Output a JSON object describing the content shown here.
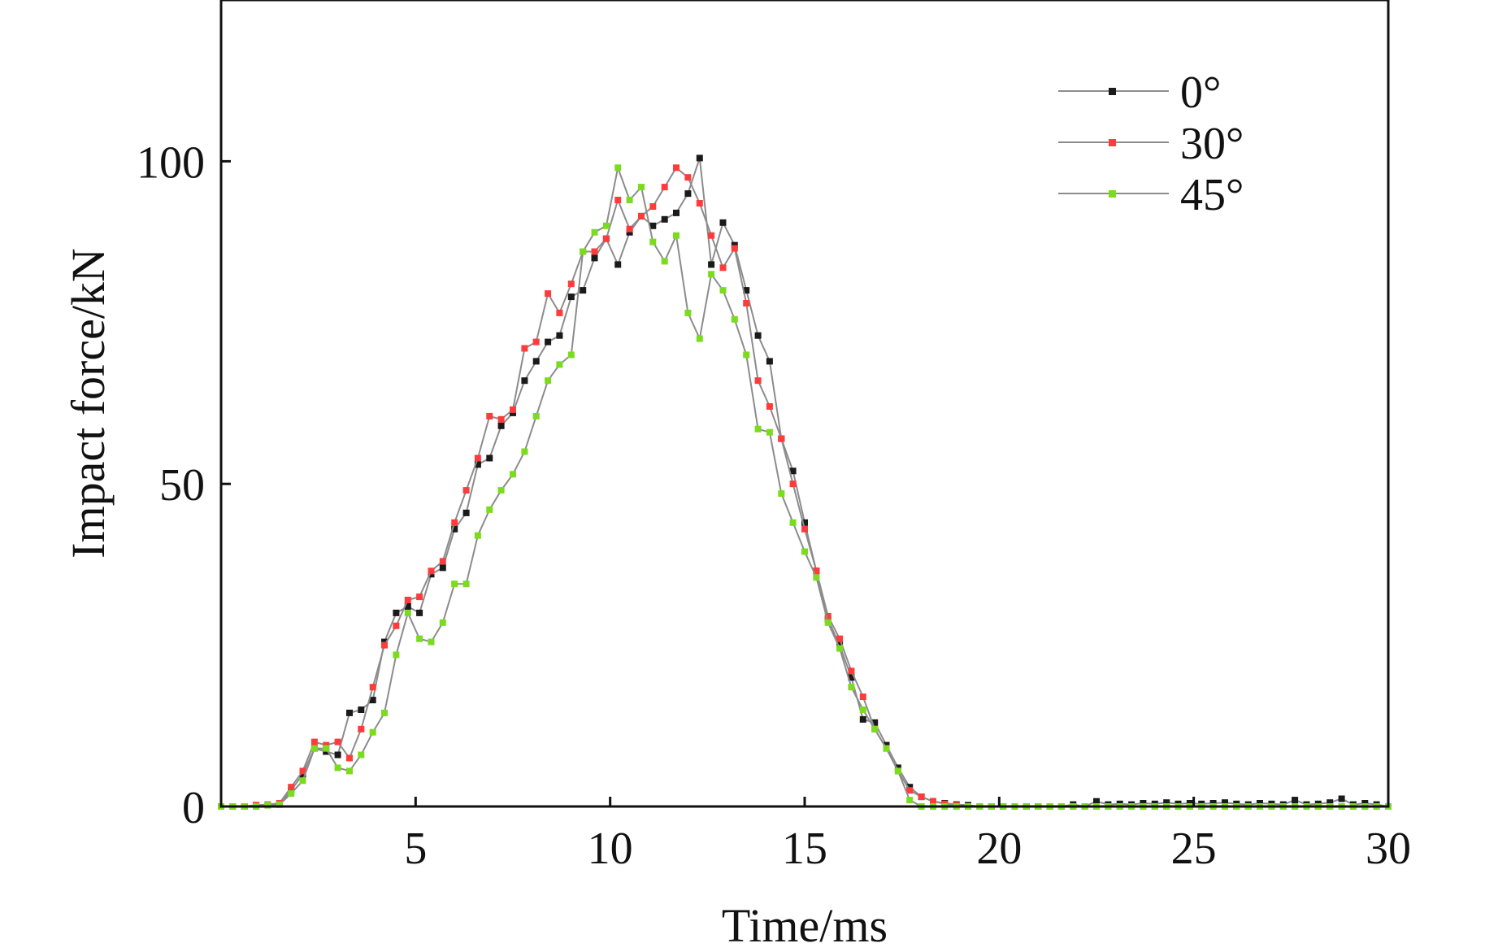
{
  "chart_data": {
    "type": "line",
    "title": "",
    "xlabel": "Time/ms",
    "ylabel": "Impact force/kN",
    "xlim": [
      0,
      30
    ],
    "ylim": [
      0,
      125
    ],
    "xticks": [
      5,
      10,
      15,
      20,
      25,
      30
    ],
    "yticks": [
      0,
      50,
      100
    ],
    "grid": false,
    "legend_position": "top-right",
    "x": [
      0.0,
      0.3,
      0.6,
      0.9,
      1.2,
      1.5,
      1.8,
      2.1,
      2.4,
      2.7,
      3.0,
      3.3,
      3.6,
      3.9,
      4.2,
      4.5,
      4.8,
      5.1,
      5.4,
      5.7,
      6.0,
      6.3,
      6.6,
      6.9,
      7.2,
      7.5,
      7.8,
      8.1,
      8.4,
      8.7,
      9.0,
      9.3,
      9.6,
      9.9,
      10.2,
      10.5,
      10.8,
      11.1,
      11.4,
      11.7,
      12.0,
      12.3,
      12.6,
      12.9,
      13.2,
      13.5,
      13.8,
      14.1,
      14.4,
      14.7,
      15.0,
      15.3,
      15.6,
      15.9,
      16.2,
      16.5,
      16.8,
      17.1,
      17.4,
      17.7,
      18.0,
      18.3,
      18.6,
      18.9,
      19.2,
      19.5,
      19.8,
      20.1,
      20.4,
      20.7,
      21.0,
      21.3,
      21.6,
      21.9,
      22.2,
      22.5,
      22.8,
      23.1,
      23.4,
      23.7,
      24.0,
      24.3,
      24.6,
      24.9,
      25.2,
      25.5,
      25.8,
      26.1,
      26.4,
      26.7,
      27.0,
      27.3,
      27.6,
      27.9,
      28.2,
      28.5,
      28.8,
      29.1,
      29.4,
      29.7,
      30.0
    ],
    "series": [
      {
        "name": "0°",
        "color": "#1a1a1a",
        "values": [
          0,
          0,
          0,
          0.2,
          0.2,
          0.3,
          2.5,
          5.0,
          9.0,
          8.5,
          8.0,
          14.5,
          15.0,
          16.5,
          25.5,
          30.0,
          31.0,
          30.0,
          36.0,
          37.0,
          43.0,
          45.5,
          53.0,
          54.0,
          59.0,
          61.0,
          66.0,
          69.0,
          72.0,
          73.0,
          79.0,
          80.0,
          85.0,
          88.0,
          84.0,
          89.0,
          91.5,
          90.0,
          91.0,
          92.0,
          95.0,
          100.5,
          84.0,
          90.5,
          87.0,
          80.0,
          73.0,
          69.0,
          57.0,
          52.0,
          44.0,
          36.5,
          29.0,
          25.0,
          20.0,
          13.5,
          13.0,
          9.5,
          6.0,
          3.0,
          1.5,
          0.8,
          0.5,
          0.3,
          0.2,
          0,
          0,
          0,
          0,
          0,
          0,
          0,
          0,
          0.3,
          0,
          0.8,
          0.3,
          0.4,
          0.3,
          0.5,
          0.4,
          0.6,
          0.4,
          0.5,
          0.4,
          0.5,
          0.6,
          0.4,
          0.3,
          0.5,
          0.4,
          0.3,
          1.0,
          0.3,
          0.4,
          0.6,
          1.2,
          0.3,
          0.5,
          0.3,
          0
        ]
      },
      {
        "name": "30°",
        "color": "#ff3b3b",
        "values": [
          0,
          0,
          0,
          0.2,
          0.3,
          0.5,
          3.0,
          5.5,
          10.0,
          9.5,
          10.0,
          7.5,
          12.0,
          18.5,
          25.0,
          28.0,
          32.0,
          32.5,
          36.5,
          38.0,
          44.0,
          49.0,
          54.0,
          60.5,
          60.0,
          61.5,
          71.0,
          72.0,
          79.5,
          76.5,
          81.0,
          86.0,
          86.0,
          88.0,
          94.0,
          89.5,
          91.5,
          93.0,
          96.0,
          99.0,
          97.5,
          93.5,
          88.5,
          83.5,
          86.5,
          78.0,
          66.0,
          62.0,
          57.0,
          50.0,
          43.0,
          36.5,
          29.5,
          26.0,
          21.0,
          17.0,
          12.0,
          9.0,
          5.5,
          2.5,
          1.5,
          0.8,
          0.4,
          0.2,
          0,
          0,
          0,
          0,
          0,
          0,
          0,
          0,
          0,
          0,
          0,
          0,
          0,
          0,
          0,
          0,
          0,
          0,
          0,
          0,
          0,
          0,
          0,
          0,
          0,
          0,
          0,
          0,
          0,
          0,
          0,
          0,
          0,
          0,
          0,
          0,
          0
        ]
      },
      {
        "name": "45°",
        "color": "#7bdc1f",
        "values": [
          0,
          0,
          0,
          0,
          0.2,
          0.3,
          2.0,
          4.0,
          9.0,
          9.0,
          6.0,
          5.5,
          8.0,
          11.5,
          14.5,
          23.5,
          30.0,
          26.0,
          25.5,
          28.5,
          34.5,
          34.5,
          42.0,
          46.0,
          49.0,
          51.5,
          55.0,
          60.5,
          66.0,
          68.5,
          70.0,
          86.0,
          89.0,
          90.0,
          99.0,
          94.0,
          96.0,
          87.5,
          84.5,
          88.5,
          76.5,
          72.5,
          82.5,
          80.0,
          75.5,
          70.0,
          58.5,
          58.0,
          48.5,
          44.0,
          39.5,
          35.5,
          28.5,
          24.5,
          18.5,
          15.0,
          12.0,
          9.0,
          5.5,
          1.0,
          0,
          0,
          0,
          0,
          0,
          0,
          0,
          0,
          0,
          0,
          0,
          0,
          0,
          0,
          0,
          0,
          0,
          0,
          0,
          0,
          0,
          0,
          0,
          0,
          0,
          0,
          0,
          0,
          0,
          0,
          0,
          0,
          0,
          0,
          0,
          0,
          0,
          0,
          0,
          0,
          0
        ]
      }
    ]
  }
}
